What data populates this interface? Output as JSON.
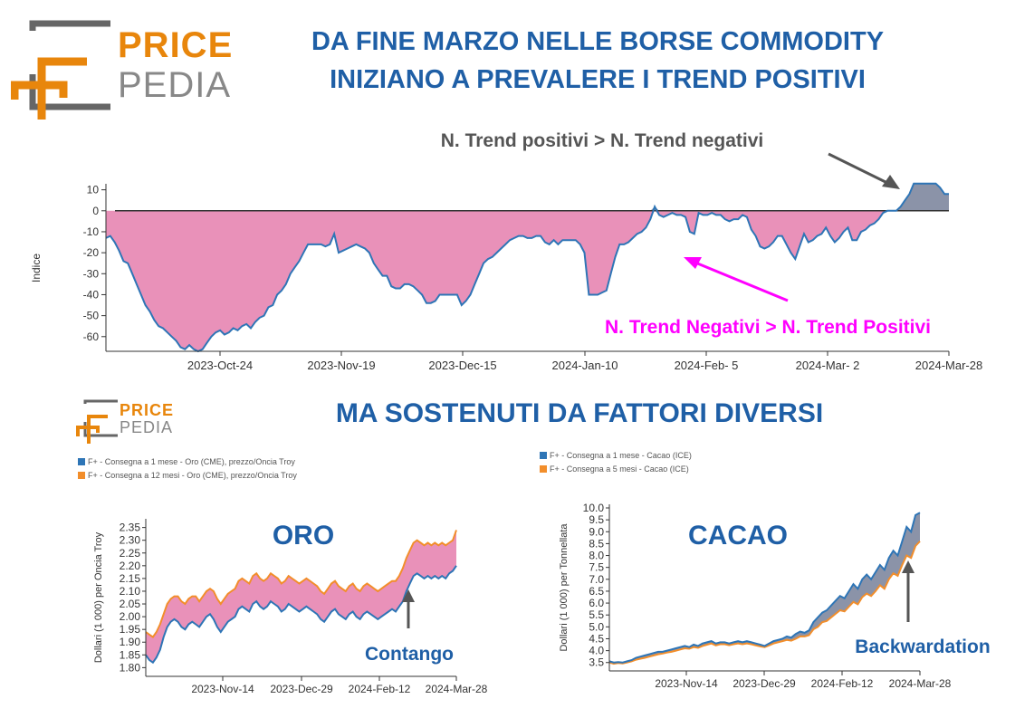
{
  "brand": {
    "price": "PRICE",
    "pedia": "PEDIA"
  },
  "headline_top": [
    "DA FINE MARZO NELLE BORSE COMMODITY",
    "INIZIANO A PREVALERE I TREND POSITIVI"
  ],
  "headline_mid": "MA SOSTENUTI DA FATTORI DIVERSI",
  "colors": {
    "blue_title": "#1f5fa6",
    "orange": "#e8860c",
    "pink_fill": "#e991b9",
    "grey_fill": "#8b93a8",
    "line_blue": "#2e75b6",
    "line_orange": "#f28e2b",
    "magenta": "#ff00ff"
  },
  "chart_data": [
    {
      "type": "area",
      "ylabel": "Indice",
      "ylim": [
        -67,
        12
      ],
      "yticks": [
        "10",
        "0",
        "-10",
        "-20",
        "-30",
        "-40",
        "-50",
        "-60"
      ],
      "xticks": [
        "2023-Oct-24",
        "2023-Nov-19",
        "2023-Dec-15",
        "2024-Jan-10",
        "2024-Feb- 5",
        "2024-Mar- 2",
        "2024-Mar-28"
      ],
      "x_range": [
        "2023-Sep-29",
        "2024-Mar-28"
      ],
      "values": [
        -13,
        -12,
        -15,
        -19,
        -24,
        -25,
        -30,
        -35,
        -40,
        -45,
        -48,
        -52,
        -55,
        -56,
        -58,
        -60,
        -62,
        -65,
        -66,
        -64,
        -66,
        -67,
        -66,
        -63,
        -60,
        -58,
        -57,
        -59,
        -58,
        -56,
        -57,
        -55,
        -54,
        -56,
        -53,
        -51,
        -50,
        -46,
        -45,
        -40,
        -38,
        -35,
        -30,
        -27,
        -24,
        -20,
        -16,
        -16,
        -16,
        -16,
        -17,
        -16,
        -11,
        -20,
        -19,
        -18,
        -17,
        -16,
        -17,
        -18,
        -20,
        -25,
        -28,
        -31,
        -31,
        -36,
        -37,
        -37,
        -35,
        -35,
        -36,
        -38,
        -40,
        -44,
        -44,
        -43,
        -40,
        -40,
        -40,
        -40,
        -40,
        -45,
        -43,
        -40,
        -35,
        -30,
        -25,
        -23,
        -22,
        -20,
        -18,
        -16,
        -14,
        -13,
        -12,
        -12,
        -13,
        -13,
        -12,
        -12,
        -15,
        -16,
        -14,
        -16,
        -14,
        -14,
        -14,
        -14,
        -16,
        -20,
        -40,
        -40,
        -40,
        -39,
        -38,
        -30,
        -22,
        -16,
        -16,
        -15,
        -13,
        -11,
        -10,
        -8,
        -4,
        2,
        -2,
        -3,
        -2,
        -1,
        -2,
        -2,
        -3,
        -10,
        -11,
        -1,
        -2,
        -2,
        -1,
        -2,
        -2,
        -4,
        -5,
        -4,
        -4,
        -2,
        -3,
        -9,
        -12,
        -17,
        -18,
        -17,
        -15,
        -12,
        -12,
        -16,
        -20,
        -23,
        -17,
        -11,
        -15,
        -14,
        -12,
        -11,
        -8,
        -12,
        -15,
        -13,
        -10,
        -8,
        -14,
        -14,
        -10,
        -9,
        -7,
        -6,
        -4,
        -1,
        0,
        0,
        0,
        2,
        5,
        8,
        13,
        13,
        13,
        13,
        13,
        13,
        11,
        8,
        8
      ],
      "annotations": [
        "N. Trend positivi > N. Trend negativi",
        "N. Trend Negativi > N. Trend Positivi"
      ]
    },
    {
      "type": "line",
      "title": "ORO",
      "ylabel": "Dollari (1 000) per Oncia Troy",
      "ylim": [
        1.78,
        2.37
      ],
      "yticks": [
        "2.35",
        "2.30",
        "2.25",
        "2.20",
        "2.15",
        "2.10",
        "2.05",
        "2.00",
        "1.95",
        "1.90",
        "1.85",
        "1.80"
      ],
      "xticks": [
        "2023-Nov-14",
        "2023-Dec-29",
        "2024-Feb-12",
        "2024-Mar-28"
      ],
      "x_range": [
        "2023-Sep-29",
        "2024-Mar-28"
      ],
      "series": [
        {
          "name": "F+ - Consegna a 1 mese - Oro (CME), prezzo/Oncia Troy",
          "color": "#2e75b6",
          "values": [
            1.85,
            1.83,
            1.82,
            1.84,
            1.87,
            1.92,
            1.96,
            1.98,
            1.99,
            1.98,
            1.96,
            1.95,
            1.97,
            1.98,
            1.97,
            1.96,
            1.98,
            2.0,
            2.01,
            1.99,
            1.96,
            1.94,
            1.96,
            1.98,
            1.99,
            2.0,
            2.03,
            2.04,
            2.03,
            2.02,
            2.05,
            2.06,
            2.04,
            2.03,
            2.04,
            2.06,
            2.05,
            2.04,
            2.02,
            2.03,
            2.05,
            2.04,
            2.03,
            2.02,
            2.03,
            2.04,
            2.03,
            2.02,
            2.01,
            1.99,
            1.98,
            2.0,
            2.02,
            2.03,
            2.01,
            2.0,
            1.99,
            2.01,
            2.02,
            2.0,
            1.99,
            2.01,
            2.02,
            2.01,
            2.0,
            1.99,
            2.0,
            2.01,
            2.02,
            2.03,
            2.02,
            2.04,
            2.06,
            2.1,
            2.13,
            2.16,
            2.17,
            2.16,
            2.15,
            2.16,
            2.15,
            2.16,
            2.15,
            2.16,
            2.15,
            2.17,
            2.18,
            2.2
          ]
        },
        {
          "name": "F+ - Consegna a 12 mesi - Oro (CME), prezzo/Oncia Troy",
          "color": "#f28e2b",
          "values": [
            1.94,
            1.93,
            1.92,
            1.94,
            1.97,
            2.01,
            2.05,
            2.07,
            2.08,
            2.08,
            2.06,
            2.05,
            2.07,
            2.08,
            2.08,
            2.06,
            2.08,
            2.1,
            2.11,
            2.1,
            2.07,
            2.05,
            2.07,
            2.09,
            2.1,
            2.11,
            2.14,
            2.15,
            2.14,
            2.13,
            2.16,
            2.17,
            2.15,
            2.14,
            2.15,
            2.17,
            2.16,
            2.15,
            2.13,
            2.14,
            2.16,
            2.15,
            2.14,
            2.13,
            2.14,
            2.15,
            2.14,
            2.13,
            2.12,
            2.1,
            2.09,
            2.11,
            2.13,
            2.14,
            2.12,
            2.11,
            2.1,
            2.12,
            2.13,
            2.11,
            2.1,
            2.12,
            2.13,
            2.12,
            2.11,
            2.1,
            2.11,
            2.12,
            2.13,
            2.14,
            2.14,
            2.16,
            2.19,
            2.23,
            2.26,
            2.29,
            2.3,
            2.29,
            2.28,
            2.29,
            2.28,
            2.29,
            2.28,
            2.29,
            2.28,
            2.29,
            2.3,
            2.34
          ]
        }
      ],
      "annotation": "Contango"
    },
    {
      "type": "line",
      "title": "CACAO",
      "ylabel": "Dollari (1 000) per Tonnellata",
      "ylim": [
        3.3,
        10.0
      ],
      "yticks": [
        "10.0",
        "9.5",
        "9.0",
        "8.5",
        "8.0",
        "7.5",
        "7.0",
        "6.5",
        "6.0",
        "5.5",
        "5.0",
        "4.5",
        "4.0",
        "3.5"
      ],
      "xticks": [
        "2023-Nov-14",
        "2023-Dec-29",
        "2024-Feb-12",
        "2024-Mar-28"
      ],
      "x_range": [
        "2023-Sep-29",
        "2024-Mar-28"
      ],
      "series": [
        {
          "name": "F+ - Consegna a 1 mese - Cacao (ICE)",
          "color": "#2e75b6",
          "values": [
            3.55,
            3.5,
            3.52,
            3.5,
            3.55,
            3.6,
            3.7,
            3.75,
            3.8,
            3.85,
            3.9,
            3.95,
            3.95,
            4.0,
            4.05,
            4.1,
            4.15,
            4.2,
            4.15,
            4.25,
            4.2,
            4.3,
            4.35,
            4.4,
            4.3,
            4.35,
            4.35,
            4.3,
            4.35,
            4.4,
            4.35,
            4.4,
            4.35,
            4.3,
            4.25,
            4.2,
            4.3,
            4.4,
            4.45,
            4.5,
            4.6,
            4.55,
            4.7,
            4.8,
            4.75,
            4.85,
            5.2,
            5.4,
            5.6,
            5.7,
            5.9,
            6.1,
            6.3,
            6.2,
            6.5,
            6.8,
            6.6,
            7.0,
            7.2,
            7.0,
            7.3,
            7.6,
            7.4,
            7.9,
            8.2,
            8.0,
            8.6,
            9.2,
            9.0,
            9.7,
            9.8
          ]
        },
        {
          "name": "F+ - Consegna a 5 mesi - Cacao (ICE)",
          "color": "#f28e2b",
          "values": [
            3.5,
            3.45,
            3.48,
            3.46,
            3.5,
            3.55,
            3.62,
            3.66,
            3.7,
            3.75,
            3.8,
            3.85,
            3.88,
            3.92,
            3.95,
            4.0,
            4.05,
            4.1,
            4.08,
            4.15,
            4.12,
            4.2,
            4.25,
            4.3,
            4.22,
            4.27,
            4.27,
            4.23,
            4.27,
            4.3,
            4.27,
            4.3,
            4.27,
            4.22,
            4.18,
            4.15,
            4.22,
            4.3,
            4.35,
            4.4,
            4.45,
            4.42,
            4.5,
            4.6,
            4.6,
            4.65,
            4.9,
            5.0,
            5.2,
            5.25,
            5.4,
            5.55,
            5.7,
            5.65,
            5.85,
            6.05,
            5.95,
            6.25,
            6.4,
            6.3,
            6.5,
            6.75,
            6.6,
            7.0,
            7.25,
            7.15,
            7.6,
            8.0,
            7.9,
            8.4,
            8.6
          ]
        }
      ],
      "annotation": "Backwardation"
    }
  ]
}
